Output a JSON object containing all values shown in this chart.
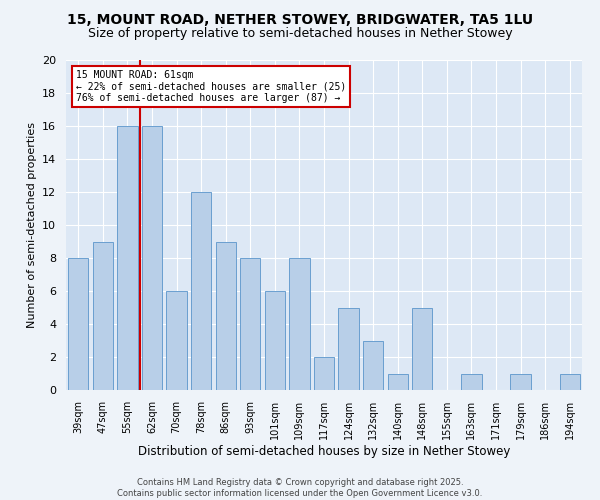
{
  "title": "15, MOUNT ROAD, NETHER STOWEY, BRIDGWATER, TA5 1LU",
  "subtitle": "Size of property relative to semi-detached houses in Nether Stowey",
  "xlabel": "Distribution of semi-detached houses by size in Nether Stowey",
  "ylabel": "Number of semi-detached properties",
  "bins": [
    "39sqm",
    "47sqm",
    "55sqm",
    "62sqm",
    "70sqm",
    "78sqm",
    "86sqm",
    "93sqm",
    "101sqm",
    "109sqm",
    "117sqm",
    "124sqm",
    "132sqm",
    "140sqm",
    "148sqm",
    "155sqm",
    "163sqm",
    "171sqm",
    "179sqm",
    "186sqm",
    "194sqm"
  ],
  "values": [
    8,
    9,
    16,
    16,
    6,
    12,
    9,
    8,
    6,
    8,
    2,
    5,
    3,
    1,
    5,
    0,
    1,
    0,
    1,
    0,
    1
  ],
  "bar_color": "#b8cfe8",
  "bar_edge_color": "#6a9fd0",
  "property_line_label": "15 MOUNT ROAD: 61sqm",
  "annotation_smaller": "← 22% of semi-detached houses are smaller (25)",
  "annotation_larger": "76% of semi-detached houses are larger (87) →",
  "annotation_box_color": "#ffffff",
  "annotation_box_edge": "#cc0000",
  "property_line_color": "#cc0000",
  "ylim": [
    0,
    20
  ],
  "yticks": [
    0,
    2,
    4,
    6,
    8,
    10,
    12,
    14,
    16,
    18,
    20
  ],
  "plot_bg_color": "#dde8f5",
  "fig_bg_color": "#eef3f9",
  "footer": "Contains HM Land Registry data © Crown copyright and database right 2025.\nContains public sector information licensed under the Open Government Licence v3.0.",
  "title_fontsize": 10,
  "subtitle_fontsize": 9
}
